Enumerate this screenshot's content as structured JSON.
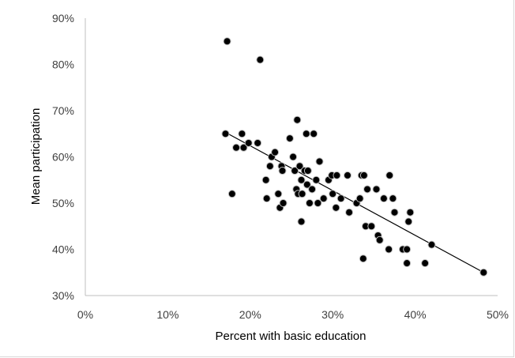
{
  "chart_data": {
    "type": "scatter",
    "title": "",
    "xlabel": "Percent with basic education",
    "ylabel": "Mean participation",
    "xlim": [
      0,
      0.5
    ],
    "ylim": [
      0.3,
      0.9
    ],
    "x_ticks": [
      "0%",
      "10%",
      "20%",
      "30%",
      "40%",
      "50%"
    ],
    "y_ticks": [
      "30%",
      "40%",
      "50%",
      "60%",
      "70%",
      "80%",
      "90%"
    ],
    "grid": false,
    "legend": "none",
    "marker_color": "#000000",
    "marker_edge_color": "#bfbfbf",
    "trendline": {
      "type": "linear",
      "x": [
        0.17,
        0.483
      ],
      "y": [
        0.653,
        0.35
      ],
      "color": "#000000"
    },
    "points": [
      [
        0.172,
        0.85
      ],
      [
        0.212,
        0.81
      ],
      [
        0.17,
        0.65
      ],
      [
        0.178,
        0.52
      ],
      [
        0.183,
        0.62
      ],
      [
        0.19,
        0.65
      ],
      [
        0.192,
        0.62
      ],
      [
        0.198,
        0.63
      ],
      [
        0.209,
        0.63
      ],
      [
        0.219,
        0.55
      ],
      [
        0.22,
        0.51
      ],
      [
        0.224,
        0.58
      ],
      [
        0.226,
        0.6
      ],
      [
        0.23,
        0.61
      ],
      [
        0.234,
        0.52
      ],
      [
        0.236,
        0.49
      ],
      [
        0.238,
        0.58
      ],
      [
        0.239,
        0.57
      ],
      [
        0.24,
        0.5
      ],
      [
        0.248,
        0.64
      ],
      [
        0.252,
        0.6
      ],
      [
        0.254,
        0.57
      ],
      [
        0.256,
        0.53
      ],
      [
        0.257,
        0.68
      ],
      [
        0.258,
        0.52
      ],
      [
        0.26,
        0.58
      ],
      [
        0.262,
        0.55
      ],
      [
        0.262,
        0.46
      ],
      [
        0.263,
        0.52
      ],
      [
        0.266,
        0.57
      ],
      [
        0.268,
        0.65
      ],
      [
        0.269,
        0.54
      ],
      [
        0.27,
        0.57
      ],
      [
        0.272,
        0.5
      ],
      [
        0.275,
        0.53
      ],
      [
        0.277,
        0.65
      ],
      [
        0.28,
        0.55
      ],
      [
        0.282,
        0.5
      ],
      [
        0.284,
        0.59
      ],
      [
        0.289,
        0.51
      ],
      [
        0.295,
        0.55
      ],
      [
        0.299,
        0.56
      ],
      [
        0.3,
        0.52
      ],
      [
        0.304,
        0.49
      ],
      [
        0.305,
        0.56
      ],
      [
        0.31,
        0.51
      ],
      [
        0.318,
        0.56
      ],
      [
        0.32,
        0.48
      ],
      [
        0.329,
        0.5
      ],
      [
        0.333,
        0.51
      ],
      [
        0.335,
        0.56
      ],
      [
        0.337,
        0.38
      ],
      [
        0.338,
        0.56
      ],
      [
        0.34,
        0.45
      ],
      [
        0.342,
        0.53
      ],
      [
        0.347,
        0.45
      ],
      [
        0.353,
        0.53
      ],
      [
        0.355,
        0.43
      ],
      [
        0.357,
        0.42
      ],
      [
        0.362,
        0.51
      ],
      [
        0.368,
        0.4
      ],
      [
        0.369,
        0.56
      ],
      [
        0.373,
        0.51
      ],
      [
        0.375,
        0.48
      ],
      [
        0.385,
        0.4
      ],
      [
        0.39,
        0.4
      ],
      [
        0.39,
        0.37
      ],
      [
        0.392,
        0.46
      ],
      [
        0.394,
        0.48
      ],
      [
        0.412,
        0.37
      ],
      [
        0.42,
        0.41
      ],
      [
        0.483,
        0.35
      ]
    ]
  }
}
